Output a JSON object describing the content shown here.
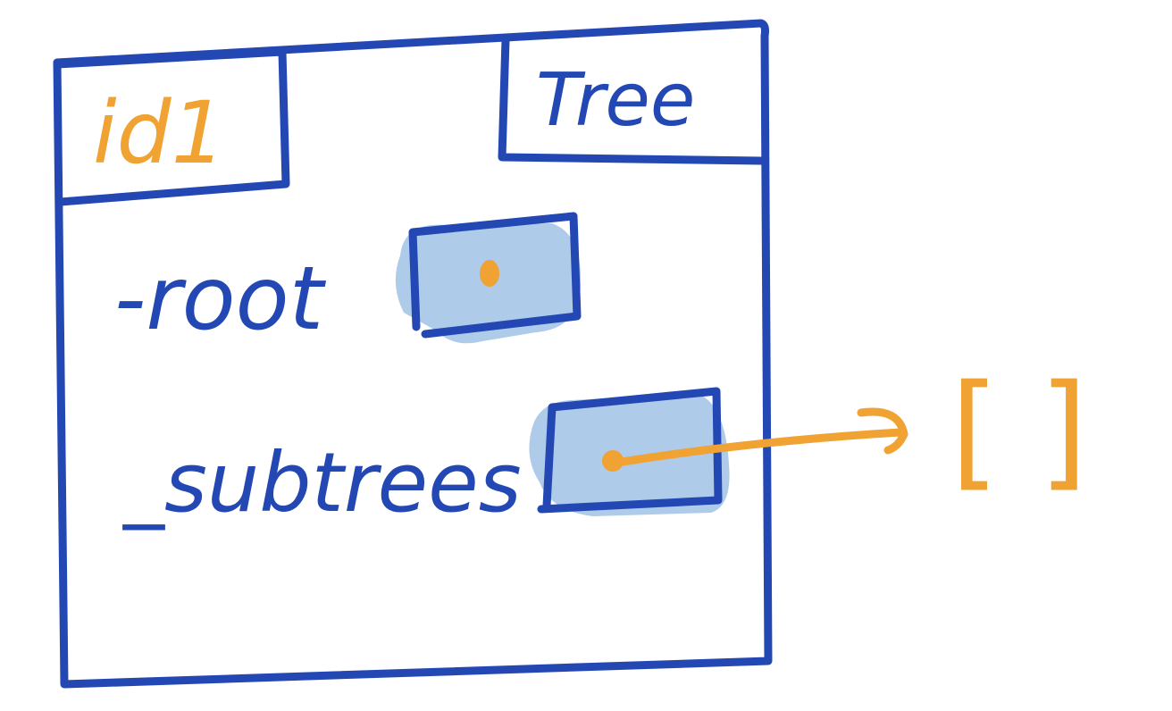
{
  "diagram": {
    "object_id": "id1",
    "object_type": "Tree",
    "attributes": [
      {
        "name": "-root",
        "points_to": "value"
      },
      {
        "name": "_subtrees",
        "points_to": "list"
      }
    ],
    "subtrees_value": "[ ]",
    "colors": {
      "ink": "#2348B3",
      "accent": "#F0A232",
      "fill": "#AECBEA",
      "background": "#FFFFFF"
    }
  }
}
